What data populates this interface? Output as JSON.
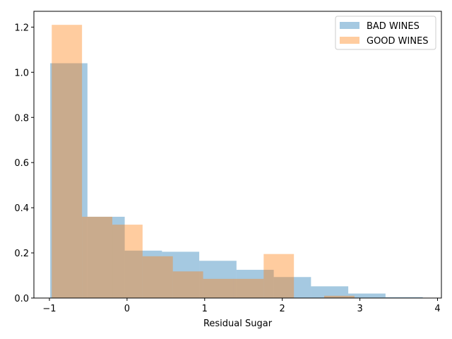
{
  "chart_data": {
    "type": "bar",
    "subtype": "histogram",
    "title": "",
    "xlabel": "Residual Sugar",
    "ylabel": "",
    "xlim": [
      -1.2,
      4.05
    ],
    "ylim": [
      0,
      1.27
    ],
    "xticks": [
      -1,
      0,
      1,
      2,
      3,
      4
    ],
    "yticks": [
      0.0,
      0.2,
      0.4,
      0.6,
      0.8,
      1.0,
      1.2
    ],
    "xtick_labels": [
      "−1",
      "0",
      "1",
      "2",
      "3",
      "4"
    ],
    "ytick_labels": [
      "0.0",
      "0.2",
      "0.4",
      "0.6",
      "0.8",
      "1.0",
      "1.2"
    ],
    "grid": false,
    "legend_position": "top-right",
    "series": [
      {
        "name": "BAD WINES",
        "color": "#1f77b4",
        "opacity": 0.4,
        "bin_edges": [
          -0.99,
          -0.51,
          -0.03,
          0.45,
          0.93,
          1.41,
          1.89,
          2.37,
          2.85,
          3.33,
          3.81
        ],
        "values": [
          1.04,
          0.36,
          0.21,
          0.205,
          0.165,
          0.125,
          0.093,
          0.052,
          0.02,
          0.004
        ]
      },
      {
        "name": "GOOD WINES",
        "color": "#ff7f0e",
        "opacity": 0.4,
        "bin_edges": [
          -0.97,
          -0.58,
          -0.19,
          0.2,
          0.59,
          0.98,
          1.37,
          1.76,
          2.15,
          2.54,
          2.93
        ],
        "values": [
          1.21,
          0.36,
          0.325,
          0.185,
          0.118,
          0.085,
          0.085,
          0.195,
          0.0,
          0.01
        ]
      }
    ]
  }
}
